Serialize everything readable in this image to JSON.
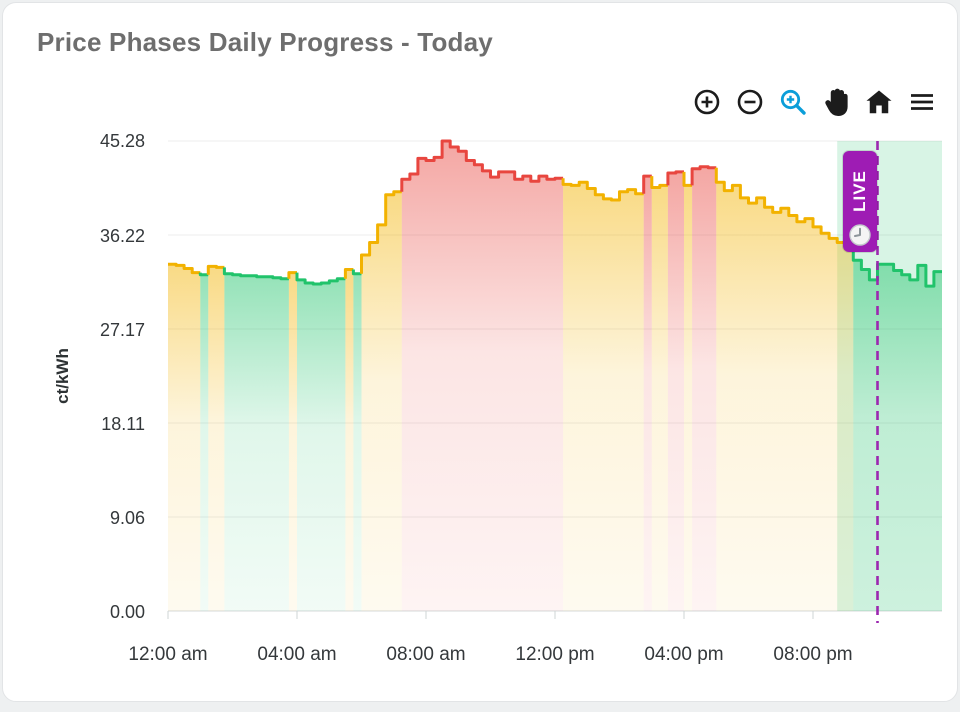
{
  "header": {
    "title": "Price Phases Daily Progress - Today"
  },
  "toolbar": {
    "active_tool": "selection-zoom",
    "icon_color": "#1c1c1c",
    "active_color": "#0b9ed9",
    "tools": [
      "zoom-in",
      "zoom-out",
      "selection-zoom",
      "pan",
      "home-reset",
      "menu"
    ]
  },
  "live_badge": {
    "label": "LIVE",
    "icon": "clock-icon",
    "color": "#9e1cb4"
  },
  "chart_data": {
    "type": "area",
    "curve": "stepline",
    "title": "Price Phases Daily Progress - Today",
    "xlabel": "",
    "ylabel": "ct/kWh",
    "ylim": [
      0,
      45.28
    ],
    "x_hours_range": [
      0,
      24
    ],
    "step_minutes": 15,
    "grid": "horizontal",
    "ytick_labels": [
      "45.28",
      "36.22",
      "27.17",
      "18.11",
      "9.06",
      "0.00"
    ],
    "ytick_values": [
      45.28,
      36.22,
      27.17,
      18.11,
      9.06,
      0
    ],
    "xtick_labels": [
      "12:00 am",
      "04:00 am",
      "08:00 am",
      "12:00 pm",
      "04:00 pm",
      "08:00 pm"
    ],
    "xtick_hours": [
      0,
      4,
      8,
      12,
      16,
      20
    ],
    "unit": "ct/kWh",
    "values": [
      33.4,
      33.3,
      33.0,
      32.6,
      32.4,
      33.2,
      33.1,
      32.5,
      32.4,
      32.3,
      32.3,
      32.2,
      32.2,
      32.1,
      32.0,
      32.6,
      31.9,
      31.6,
      31.5,
      31.6,
      31.8,
      32.0,
      32.9,
      32.5,
      34.3,
      35.5,
      37.2,
      40.1,
      40.4,
      41.6,
      42.1,
      43.6,
      43.4,
      43.7,
      45.28,
      44.7,
      44.3,
      43.4,
      43.0,
      42.4,
      41.8,
      42.3,
      42.3,
      41.6,
      41.9,
      41.4,
      41.9,
      41.6,
      41.7,
      41.1,
      41.0,
      41.3,
      40.7,
      40.1,
      39.7,
      39.6,
      40.4,
      40.6,
      40.2,
      41.9,
      40.8,
      41.0,
      42.2,
      42.3,
      41.0,
      42.6,
      42.8,
      42.7,
      41.3,
      40.5,
      41.0,
      39.8,
      39.3,
      39.8,
      38.9,
      38.4,
      38.8,
      38.1,
      37.5,
      37.8,
      37.0,
      36.4,
      35.9,
      35.5,
      34.9,
      33.8,
      32.9,
      31.9,
      33.4,
      33.4,
      32.8,
      32.4,
      31.9,
      33.3,
      31.3,
      32.7
    ],
    "phases": "yyyygyyggggggggyggggggygyyyyyrrrrrrrrrrrrrrrrrrrryyyyyyyyyyryyrryrrryyyyyyyyyyyyyyyyyggggggggggg",
    "phase_colors": {
      "g": "#21C36B",
      "y": "#F2B200",
      "r": "#E8463F"
    },
    "phase_meaning": {
      "g": "cheap phase",
      "y": "medium phase",
      "r": "expensive phase"
    },
    "now": {
      "hour": 22.0,
      "line_color": "#9c27b0",
      "line_style": "dashed"
    },
    "future_region": {
      "start_hour": 20.75,
      "end_hour": 24,
      "color": "rgba(38,196,110,0.18)"
    },
    "legend": "none"
  }
}
